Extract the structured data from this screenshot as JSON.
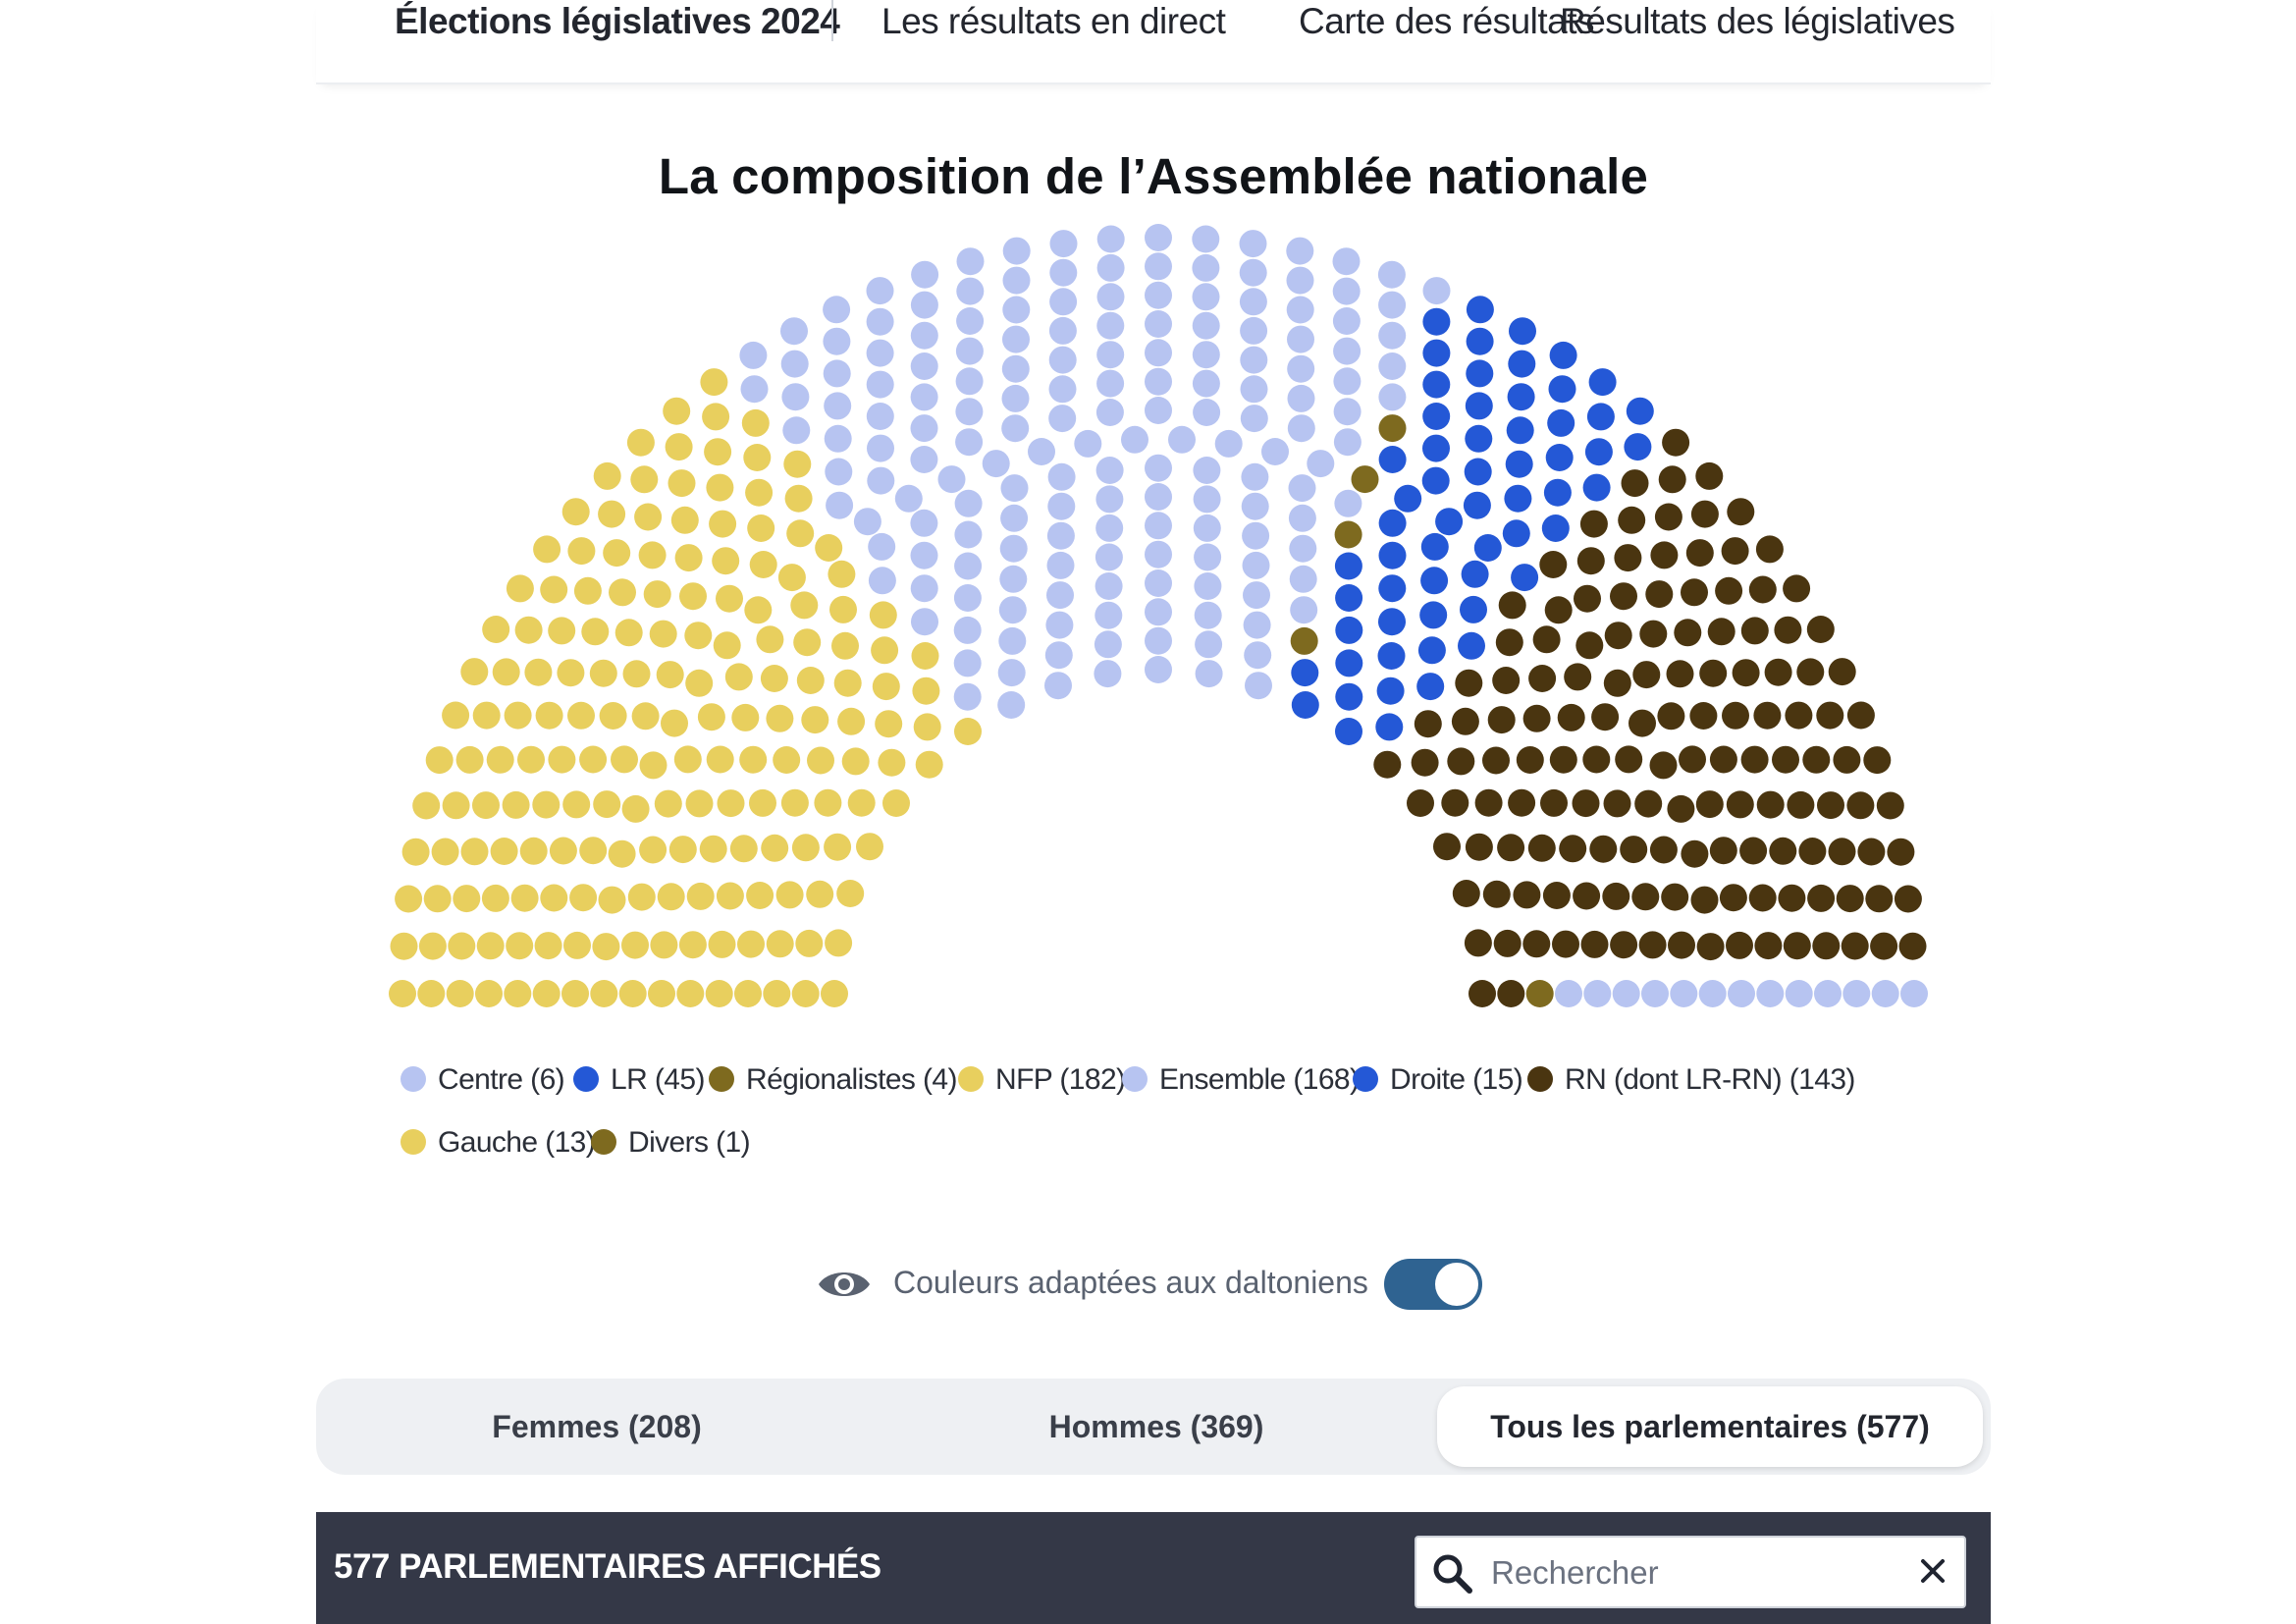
{
  "nav": {
    "brand": "Élections législatives 2024",
    "links": [
      "Les résultats en direct",
      "Carte des résultats",
      "Résultats des législatives"
    ]
  },
  "chart_data": {
    "type": "hemicycle",
    "title": "La composition de l’Assemblée nationale",
    "total_seats": 577,
    "layout_order": [
      "NFP",
      "Centre",
      "Ensemble",
      "Régionalistes",
      "Droite",
      "LR",
      "RN",
      "Divers"
    ],
    "series": [
      {
        "name": "Centre",
        "label": "Centre (6)",
        "seats": 6,
        "color": "#b7c4f1"
      },
      {
        "name": "LR",
        "label": "LR (45)",
        "seats": 45,
        "color": "#2458d6"
      },
      {
        "name": "Régionalistes",
        "label": "Régionalistes (4)",
        "seats": 4,
        "color": "#7e6a1f"
      },
      {
        "name": "NFP",
        "label": "NFP (182)",
        "seats": 182,
        "color": "#e8cf5e"
      },
      {
        "name": "Ensemble",
        "label": "Ensemble (168)",
        "seats": 168,
        "color": "#b7c4f1"
      },
      {
        "name": "Droite",
        "label": "Droite (15)",
        "seats": 15,
        "color": "#2458d6"
      },
      {
        "name": "RN",
        "label": "RN (dont LR-RN) (143)",
        "seats": 143,
        "color": "#4a3510"
      },
      {
        "name": "Gauche",
        "label": "Gauche (13)",
        "seats": 13,
        "color": "#e8cf5e"
      },
      {
        "name": "Divers",
        "label": "Divers (1)",
        "seats": 1,
        "color": "#7e6a1f"
      }
    ]
  },
  "accessibility": {
    "label": "Couleurs adaptées aux daltoniens",
    "enabled": true,
    "icon": "eye-icon"
  },
  "filters": {
    "tabs": [
      "Femmes (208)",
      "Hommes (369)",
      "Tous les parlementaires (577)"
    ],
    "active": 2
  },
  "list": {
    "count_label": "577 PARLEMENTAIRES AFFICHÉS",
    "search_placeholder": "Rechercher",
    "search_value": ""
  }
}
